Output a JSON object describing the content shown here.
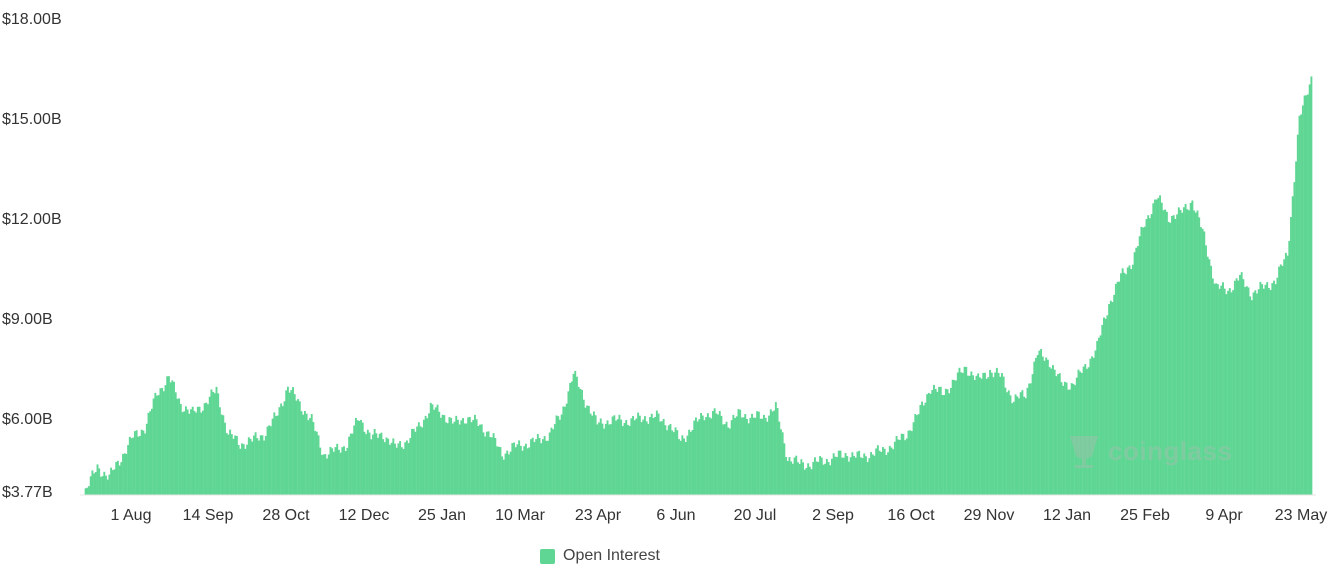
{
  "chart_data": {
    "type": "bar",
    "series": [
      {
        "name": "Open Interest",
        "color": "#5fd693",
        "points": [
          [
            "2019-07-01",
            3.9
          ],
          [
            "2019-07-08",
            4.6
          ],
          [
            "2019-07-15",
            4.3
          ],
          [
            "2019-07-22",
            4.9
          ],
          [
            "2019-07-29",
            5.5
          ],
          [
            "2019-08-05",
            5.8
          ],
          [
            "2019-08-12",
            6.8
          ],
          [
            "2019-08-19",
            7.3
          ],
          [
            "2019-08-26",
            6.5
          ],
          [
            "2019-09-02",
            6.2
          ],
          [
            "2019-09-09",
            6.5
          ],
          [
            "2019-09-16",
            6.9
          ],
          [
            "2019-09-23",
            5.6
          ],
          [
            "2019-09-30",
            5.3
          ],
          [
            "2019-10-07",
            5.4
          ],
          [
            "2019-10-14",
            5.6
          ],
          [
            "2019-10-21",
            6.1
          ],
          [
            "2019-10-28",
            7.0
          ],
          [
            "2019-11-04",
            6.5
          ],
          [
            "2019-11-11",
            6.0
          ],
          [
            "2019-11-18",
            5.0
          ],
          [
            "2019-11-25",
            5.1
          ],
          [
            "2019-12-02",
            5.3
          ],
          [
            "2019-12-09",
            6.1
          ],
          [
            "2019-12-16",
            5.5
          ],
          [
            "2019-12-23",
            5.6
          ],
          [
            "2019-12-30",
            5.2
          ],
          [
            "2020-01-06",
            5.4
          ],
          [
            "2020-01-13",
            5.8
          ],
          [
            "2020-01-20",
            6.4
          ],
          [
            "2020-01-27",
            6.2
          ],
          [
            "2020-02-03",
            5.9
          ],
          [
            "2020-02-10",
            6.1
          ],
          [
            "2020-02-17",
            5.9
          ],
          [
            "2020-02-24",
            5.6
          ],
          [
            "2020-03-02",
            5.0
          ],
          [
            "2020-03-09",
            5.2
          ],
          [
            "2020-03-16",
            5.3
          ],
          [
            "2020-03-23",
            5.4
          ],
          [
            "2020-03-30",
            5.6
          ],
          [
            "2020-04-06",
            6.2
          ],
          [
            "2020-04-13",
            7.4
          ],
          [
            "2020-04-20",
            6.6
          ],
          [
            "2020-04-27",
            5.9
          ],
          [
            "2020-05-04",
            6.0
          ],
          [
            "2020-05-11",
            6.0
          ],
          [
            "2020-05-18",
            6.0
          ],
          [
            "2020-05-25",
            6.1
          ],
          [
            "2020-06-01",
            6.1
          ],
          [
            "2020-06-08",
            5.9
          ],
          [
            "2020-06-15",
            5.4
          ],
          [
            "2020-06-22",
            5.8
          ],
          [
            "2020-06-29",
            6.2
          ],
          [
            "2020-07-06",
            6.2
          ],
          [
            "2020-07-13",
            5.9
          ],
          [
            "2020-07-20",
            6.2
          ],
          [
            "2020-07-27",
            6.1
          ],
          [
            "2020-08-03",
            6.1
          ],
          [
            "2020-08-10",
            6.4
          ],
          [
            "2020-08-17",
            4.9
          ],
          [
            "2020-08-24",
            4.7
          ],
          [
            "2020-08-31",
            4.7
          ],
          [
            "2020-09-07",
            4.8
          ],
          [
            "2020-09-14",
            4.9
          ],
          [
            "2020-09-21",
            5.0
          ],
          [
            "2020-09-28",
            4.9
          ],
          [
            "2020-10-05",
            5.0
          ],
          [
            "2020-10-12",
            5.1
          ],
          [
            "2020-10-19",
            5.3
          ],
          [
            "2020-10-26",
            5.6
          ],
          [
            "2020-11-02",
            6.2
          ],
          [
            "2020-11-09",
            7.0
          ],
          [
            "2020-11-16",
            6.8
          ],
          [
            "2020-11-23",
            7.2
          ],
          [
            "2020-11-30",
            7.6
          ],
          [
            "2020-12-07",
            7.2
          ],
          [
            "2020-12-14",
            7.5
          ],
          [
            "2020-12-21",
            7.3
          ],
          [
            "2020-12-28",
            6.6
          ],
          [
            "2021-01-04",
            6.8
          ],
          [
            "2021-01-11",
            8.0
          ],
          [
            "2021-01-18",
            7.8
          ],
          [
            "2021-01-25",
            7.1
          ],
          [
            "2021-02-01",
            7.1
          ],
          [
            "2021-02-08",
            7.6
          ],
          [
            "2021-02-15",
            8.2
          ],
          [
            "2021-02-22",
            9.5
          ],
          [
            "2021-03-01",
            10.3
          ],
          [
            "2021-03-08",
            10.8
          ],
          [
            "2021-03-15",
            11.9
          ],
          [
            "2021-03-22",
            12.7
          ],
          [
            "2021-03-29",
            12.1
          ],
          [
            "2021-04-05",
            12.2
          ],
          [
            "2021-04-12",
            12.6
          ],
          [
            "2021-04-19",
            11.5
          ],
          [
            "2021-04-26",
            10.0
          ],
          [
            "2021-05-03",
            9.9
          ],
          [
            "2021-05-10",
            10.3
          ],
          [
            "2021-05-17",
            9.8
          ],
          [
            "2021-05-24",
            10.0
          ],
          [
            "2021-05-31",
            10.2
          ],
          [
            "2021-06-07",
            11.0
          ],
          [
            "2021-06-14",
            15.0
          ],
          [
            "2021-06-21",
            16.3
          ]
        ]
      }
    ],
    "x_tick_labels": [
      "1 Aug",
      "14 Sep",
      "28 Oct",
      "12 Dec",
      "25 Jan",
      "10 Mar",
      "23 Apr",
      "6 Jun",
      "20 Jul",
      "2 Sep",
      "16 Oct",
      "29 Nov",
      "12 Jan",
      "25 Feb",
      "9 Apr",
      "23 May"
    ],
    "y_tick_labels": [
      "$3.77B",
      "$6.00B",
      "$9.00B",
      "$12.00B",
      "$15.00B",
      "$18.00B"
    ],
    "y_tick_values": [
      3.77,
      6,
      9,
      12,
      15,
      18
    ],
    "ylim": [
      3.77,
      18
    ],
    "xlim": [
      "2019-06-28",
      "2021-06-24"
    ],
    "grid": false,
    "legend_position": "bottom-center",
    "watermark": "coinglass"
  }
}
